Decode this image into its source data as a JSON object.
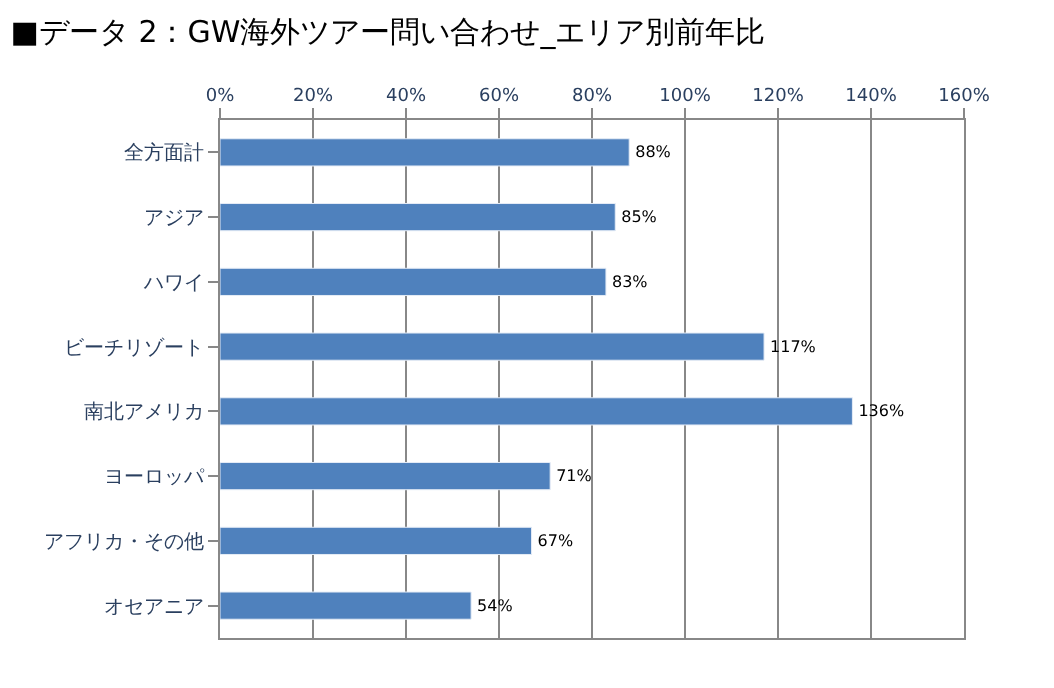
{
  "chart_data": {
    "type": "bar",
    "orientation": "horizontal",
    "title": "■データ 2：GW海外ツアー問い合わせ_エリア別前年比",
    "categories": [
      "全方面計",
      "アジア",
      "ハワイ",
      "ビーチリゾート",
      "南北アメリカ",
      "ヨーロッパ",
      "アフリカ・その他",
      "オセアニア"
    ],
    "values": [
      88,
      85,
      83,
      117,
      136,
      71,
      67,
      54
    ],
    "value_labels": [
      "88%",
      "85%",
      "83%",
      "117%",
      "136%",
      "71%",
      "67%",
      "54%"
    ],
    "color": "#4f81bd",
    "xlim": [
      0,
      160
    ],
    "xticks": [
      {
        "value": 0,
        "label": "0%"
      },
      {
        "value": 20,
        "label": "20%"
      },
      {
        "value": 40,
        "label": "40%"
      },
      {
        "value": 60,
        "label": "60%"
      },
      {
        "value": 80,
        "label": "80%"
      },
      {
        "value": 100,
        "label": "100%"
      },
      {
        "value": 120,
        "label": "120%"
      },
      {
        "value": 140,
        "label": "140%"
      },
      {
        "value": 160,
        "label": "160%"
      }
    ],
    "grid": "x",
    "legend": false
  }
}
